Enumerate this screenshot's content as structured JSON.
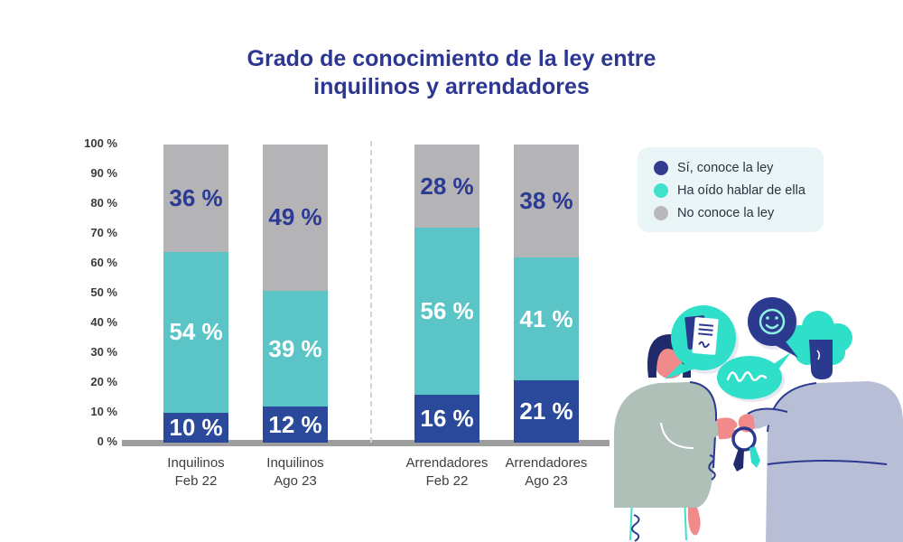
{
  "header": {
    "title_line1": "Grado de conocimiento de la ley entre",
    "title_line2": "inquilinos y arrendadores"
  },
  "chart_data": {
    "type": "bar",
    "subtype": "stacked-vertical",
    "title": "Grado de conocimiento de la ley entre inquilinos y arrendadores",
    "categories": [
      {
        "line1": "Inquilinos",
        "line2": "Feb 22"
      },
      {
        "line1": "Inquilinos",
        "line2": "Ago 23"
      },
      {
        "line1": "Arrendadores",
        "line2": "Feb 22"
      },
      {
        "line1": "Arrendadores",
        "line2": "Ago 23"
      }
    ],
    "series": [
      {
        "name": "Sí, conoce la ley",
        "color": "#2A499B",
        "label_color": "#FFFFFF",
        "values": [
          10,
          12,
          16,
          21
        ]
      },
      {
        "name": "Ha oído hablar de ella",
        "color": "#5BC4C6",
        "label_color": "#FFFFFF",
        "values": [
          54,
          39,
          56,
          41
        ]
      },
      {
        "name": "No conoce la ley",
        "color": "#B4B3B6",
        "label_color": "#2B3A92",
        "values": [
          36,
          49,
          28,
          38
        ]
      }
    ],
    "value_suffix": " %",
    "y_ticks": [
      "0 %",
      "10 %",
      "20 %",
      "30 %",
      "40 %",
      "50 %",
      "60 %",
      "70 %",
      "80 %",
      "90 %",
      "100 %"
    ],
    "ylim": [
      0,
      100
    ],
    "grid": false,
    "divider_between_groups": true,
    "legend_position": "upper-right"
  },
  "legend": {
    "items": [
      {
        "label": "Sí, conoce la ley",
        "color": "#333D8F"
      },
      {
        "label": "Ha oído hablar de ella",
        "color": "#3EE2CB"
      },
      {
        "label": "No conoce la ley",
        "color": "#B9B9BD"
      }
    ]
  },
  "colors": {
    "title_navy": "#2C3792",
    "bar_blue": "#2A499B",
    "bar_teal": "#5BC4C6",
    "bar_gray": "#B4B3B6",
    "axis_gray": "#9D9D9D",
    "legend_bg": "#E9F5F7"
  },
  "illustration_description": "Two people exchanging house keys with speech bubbles showing a contract, a smiley face and a signature"
}
